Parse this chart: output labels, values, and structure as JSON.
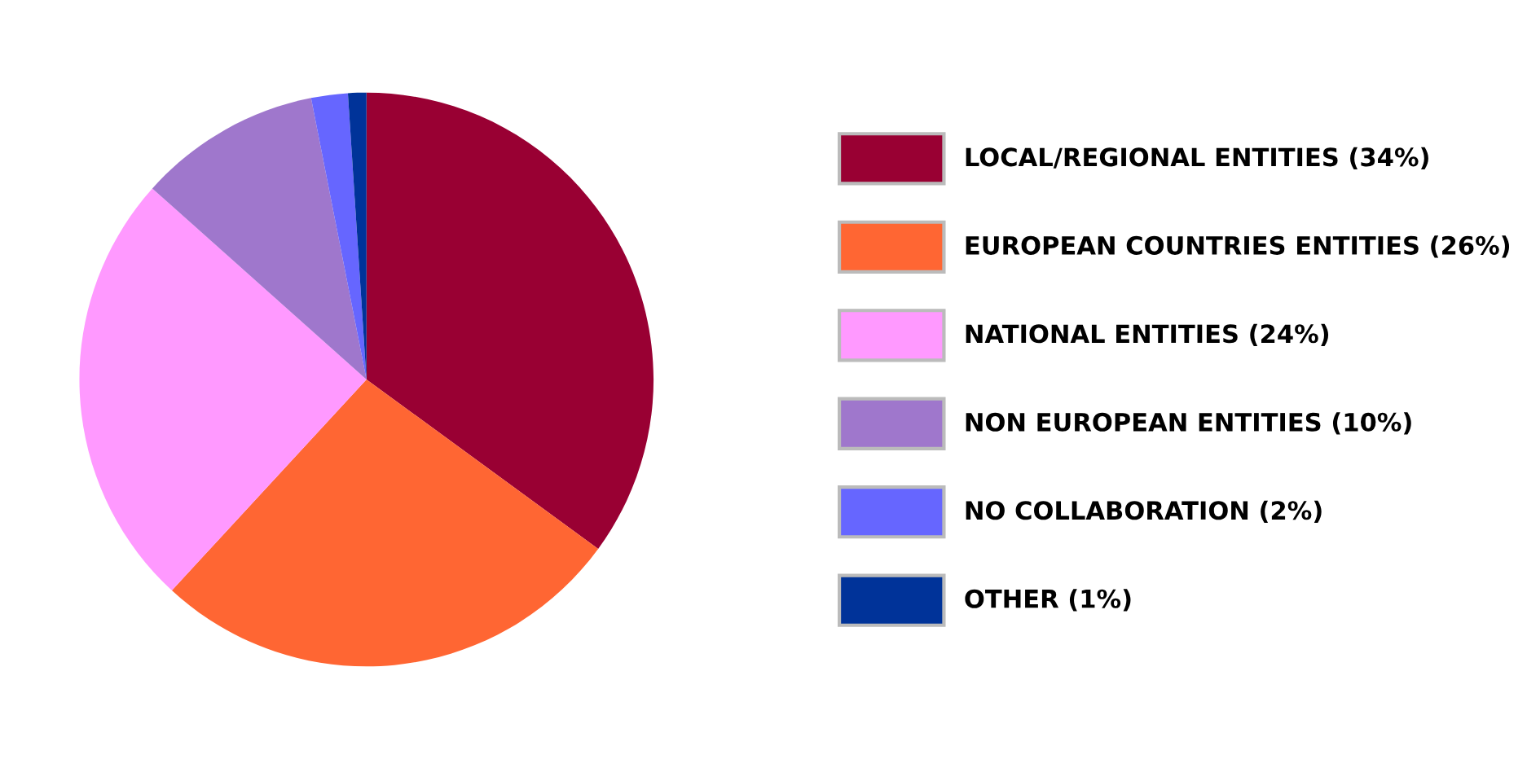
{
  "chart_data": {
    "type": "pie",
    "categories": [
      "LOCAL/REGIONAL ENTITIES (34%)",
      "EUROPEAN COUNTRIES ENTITIES (26%)",
      "NATIONAL ENTITIES (24%)",
      "NON EUROPEAN ENTITIES (10%)",
      "NO COLLABORATION (2%)",
      "OTHER (1%)"
    ],
    "values": [
      34,
      26,
      24,
      10,
      2,
      1
    ],
    "colors": [
      "#990033",
      "#ff6633",
      "#ff99ff",
      "#9f77cc",
      "#6666ff",
      "#003399"
    ],
    "legend": "right"
  }
}
